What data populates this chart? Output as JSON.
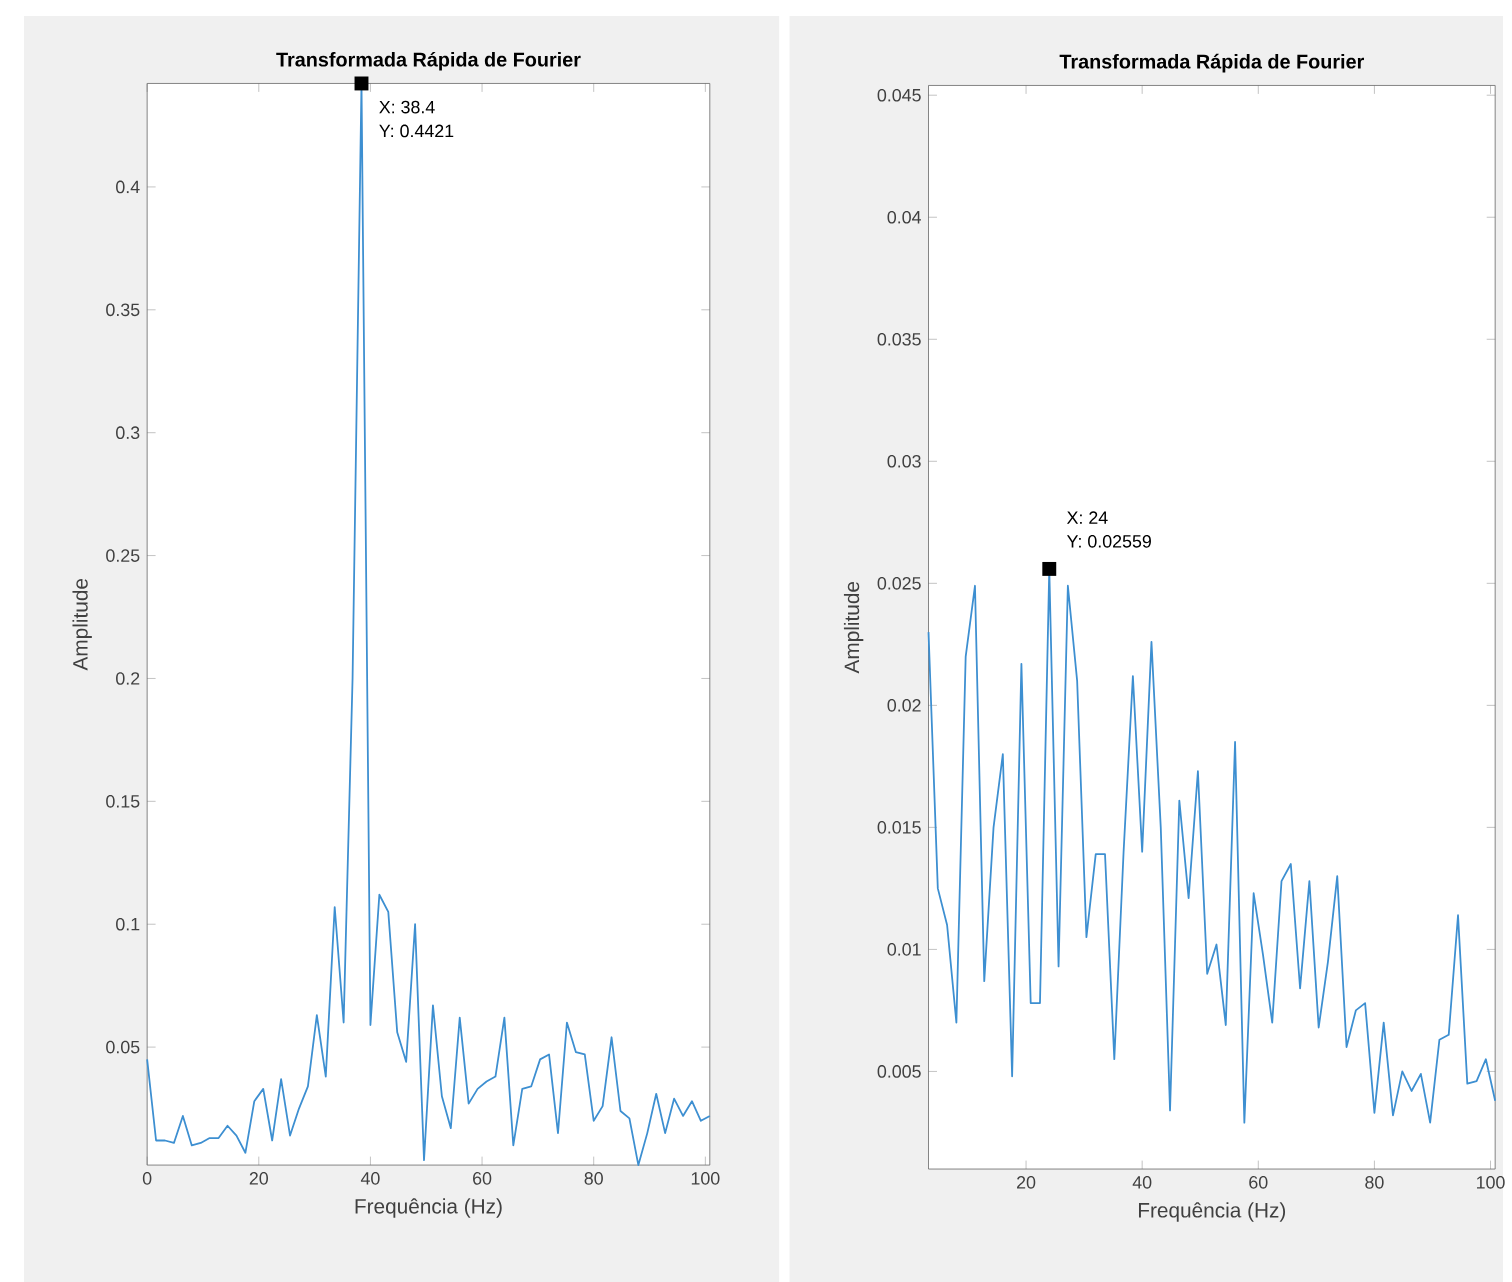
{
  "chart_data": [
    {
      "type": "line",
      "title": "Transformada Rápida de Fourier",
      "xlabel": "Frequência (Hz)",
      "ylabel": "Amplitude",
      "x": [
        0,
        1.6,
        3.2,
        4.8,
        6.4,
        8,
        9.6,
        11.2,
        12.8,
        14.4,
        16,
        17.6,
        19.2,
        20.8,
        22.4,
        24,
        25.6,
        27.2,
        28.8,
        30.4,
        32,
        33.6,
        35.2,
        36.8,
        38.4,
        40,
        41.6,
        43.2,
        44.8,
        46.4,
        48,
        49.6,
        51.2,
        52.8,
        54.4,
        56,
        57.6,
        59.2,
        60.8,
        62.4,
        64,
        65.6,
        67.2,
        68.8,
        70.4,
        72,
        73.6,
        75.2,
        76.8,
        78.4,
        80,
        81.6,
        83.2,
        84.8,
        86.4,
        88,
        89.6,
        91.2,
        92.8,
        94.4,
        96,
        97.6,
        99.2,
        100.8
      ],
      "series": [
        {
          "color": "#3d8fd1",
          "values": [
            0.045,
            0.012,
            0.012,
            0.011,
            0.022,
            0.01,
            0.011,
            0.013,
            0.013,
            0.018,
            0.014,
            0.007,
            0.028,
            0.033,
            0.012,
            0.037,
            0.014,
            0.025,
            0.034,
            0.063,
            0.038,
            0.107,
            0.06,
            0.2,
            0.4421,
            0.059,
            0.112,
            0.105,
            0.056,
            0.044,
            0.1,
            0.004,
            0.067,
            0.03,
            0.017,
            0.062,
            0.027,
            0.033,
            0.036,
            0.038,
            0.062,
            0.01,
            0.033,
            0.034,
            0.045,
            0.047,
            0.015,
            0.06,
            0.048,
            0.047,
            0.02,
            0.026,
            0.054,
            0.024,
            0.021,
            0.002,
            0.015,
            0.031,
            0.015,
            0.029,
            0.022,
            0.028,
            0.02,
            0.022
          ]
        }
      ],
      "xlim": [
        0,
        100.8
      ],
      "ylim": [
        0.002,
        0.4421
      ],
      "xticks": [
        0,
        20,
        40,
        60,
        80,
        100
      ],
      "yticks": [
        0.05,
        0.1,
        0.15,
        0.2,
        0.25,
        0.3,
        0.35,
        0.4
      ],
      "annotations": [
        "X: 38.4",
        "Y: 0.4421"
      ]
    },
    {
      "type": "line",
      "title": "Transformada Rápida de Fourier",
      "xlabel": "Frequência (Hz)",
      "ylabel": "Amplitude",
      "x": [
        3.2,
        4.8,
        6.4,
        8,
        9.6,
        11.2,
        12.8,
        14.4,
        16,
        17.6,
        19.2,
        20.8,
        22.4,
        24,
        25.6,
        27.2,
        28.8,
        30.4,
        32,
        33.6,
        35.2,
        36.8,
        38.4,
        40,
        41.6,
        43.2,
        44.8,
        46.4,
        48,
        49.6,
        51.2,
        52.8,
        54.4,
        56,
        57.6,
        59.2,
        60.8,
        62.4,
        64,
        65.6,
        67.2,
        68.8,
        70.4,
        72,
        73.6,
        75.2,
        76.8,
        78.4,
        80,
        81.6,
        83.2,
        84.8,
        86.4,
        88,
        89.6,
        91.2,
        92.8,
        94.4,
        96,
        97.6,
        99.2,
        100.8
      ],
      "series": [
        {
          "color": "#3d8fd1",
          "values": [
            0.023,
            0.0125,
            0.011,
            0.007,
            0.022,
            0.0249,
            0.0087,
            0.015,
            0.018,
            0.0048,
            0.0217,
            0.0078,
            0.0078,
            0.02559,
            0.0093,
            0.0249,
            0.021,
            0.0105,
            0.0139,
            0.0139,
            0.0055,
            0.014,
            0.0212,
            0.014,
            0.0226,
            0.015,
            0.0034,
            0.0161,
            0.0121,
            0.0173,
            0.009,
            0.0102,
            0.0069,
            0.0185,
            0.0029,
            0.0123,
            0.0098,
            0.007,
            0.0128,
            0.0135,
            0.0084,
            0.0128,
            0.0068,
            0.0095,
            0.013,
            0.006,
            0.0075,
            0.0078,
            0.0033,
            0.007,
            0.0032,
            0.005,
            0.0042,
            0.0049,
            0.0029,
            0.0063,
            0.0065,
            0.0114,
            0.0045,
            0.0046,
            0.0055,
            0.0038
          ]
        }
      ],
      "xlim": [
        3.2,
        100.8
      ],
      "ylim": [
        0.001,
        0.0454
      ],
      "xticks": [
        20,
        40,
        60,
        80,
        100
      ],
      "yticks": [
        0.005,
        0.01,
        0.015,
        0.02,
        0.025,
        0.03,
        0.035,
        0.04,
        0.045
      ],
      "annotations": [
        "X: 24",
        "Y: 0.02559"
      ]
    }
  ]
}
